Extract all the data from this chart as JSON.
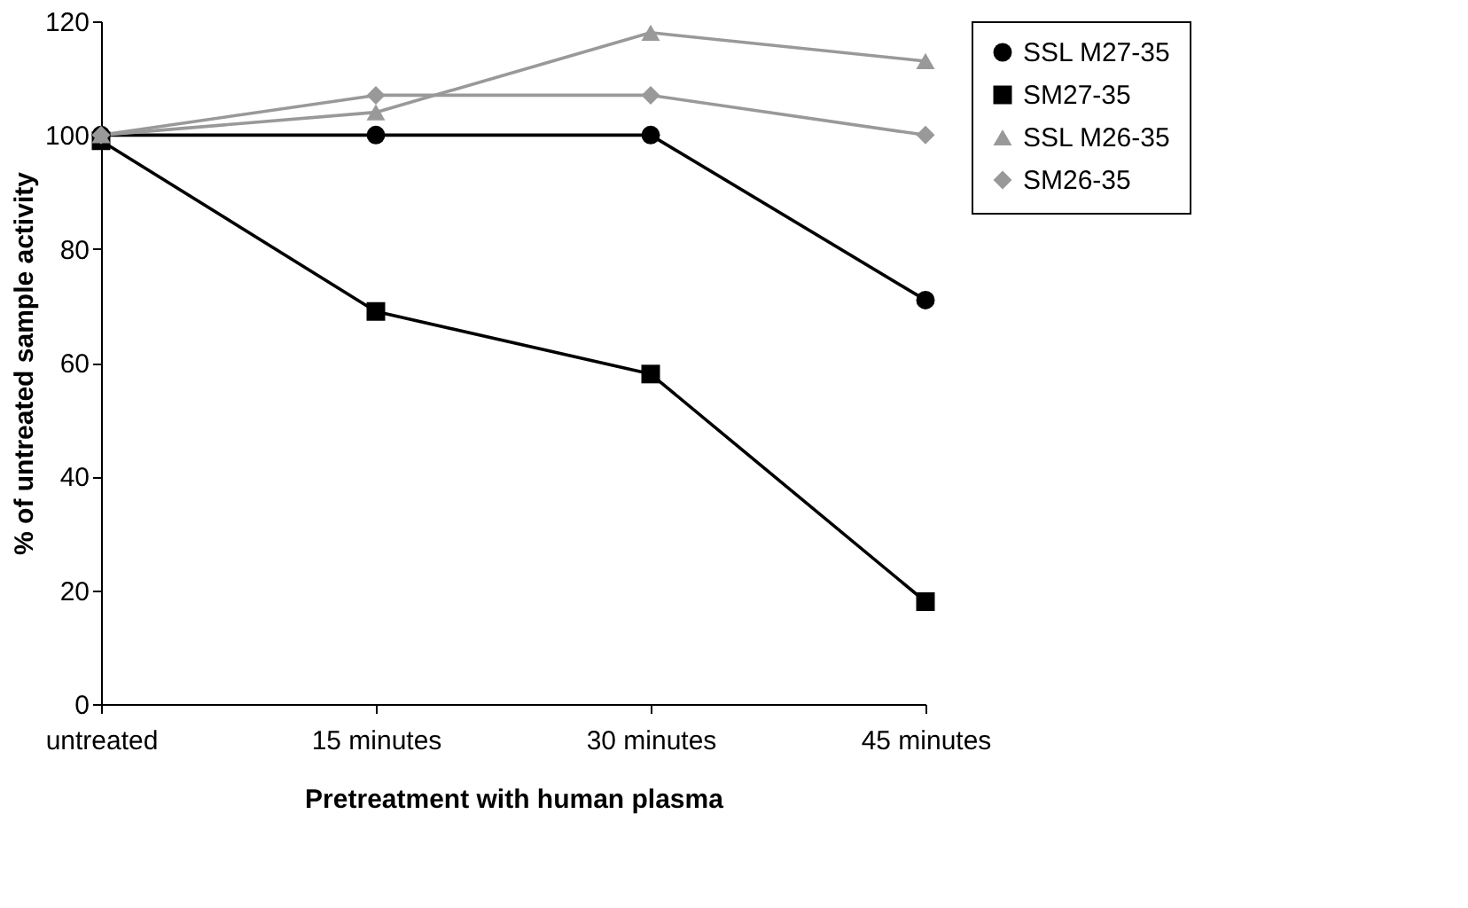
{
  "chart_data": {
    "type": "line",
    "xlabel": "Pretreatment with human plasma",
    "ylabel": "% of untreated sample activity",
    "categories": [
      "untreated",
      "15 minutes",
      "30 minutes",
      "45 minutes"
    ],
    "series": [
      {
        "name": "SSL M27-35",
        "color": "#000000",
        "marker": "circle",
        "values": [
          100,
          100,
          100,
          71
        ]
      },
      {
        "name": "SM27-35",
        "color": "#000000",
        "marker": "square",
        "values": [
          99,
          69,
          58,
          18
        ]
      },
      {
        "name": "SSL M26-35",
        "color": "#999999",
        "marker": "triangle",
        "values": [
          100,
          104,
          118,
          113
        ]
      },
      {
        "name": "SM26-35",
        "color": "#999999",
        "marker": "diamond",
        "values": [
          100,
          107,
          107,
          100
        ]
      }
    ],
    "ylim": [
      0,
      120
    ],
    "yticks": [
      0,
      20,
      40,
      60,
      80,
      100,
      120
    ],
    "grid": false,
    "legend": "top right",
    "line_style": "solid"
  }
}
